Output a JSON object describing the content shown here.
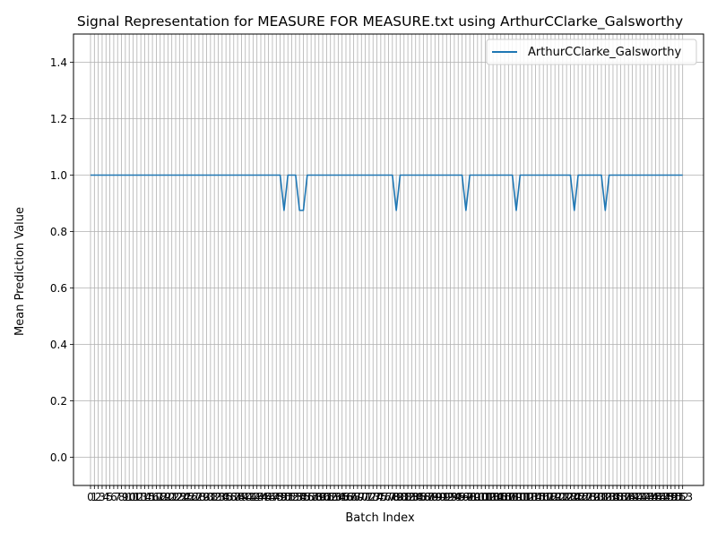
{
  "chart_data": {
    "type": "line",
    "title": "Signal Representation for MEASURE FOR MEASURE.txt using ArthurCClarke_Galsworthy",
    "xlabel": "Batch Index",
    "ylabel": "Mean Prediction Value",
    "xlim": [
      -4.4,
      158.4
    ],
    "ylim": [
      -0.1,
      1.5
    ],
    "x_ticks": [
      0,
      1,
      2,
      3,
      4,
      5,
      6,
      7,
      8,
      9,
      10,
      11,
      12,
      13,
      14,
      15,
      16,
      17,
      18,
      19,
      20,
      21,
      22,
      23,
      24,
      25,
      26,
      27,
      28,
      29,
      30,
      31,
      32,
      33,
      34,
      35,
      36,
      37,
      38,
      39,
      40,
      41,
      42,
      43,
      44,
      45,
      46,
      47,
      48,
      49,
      50,
      51,
      52,
      53,
      54,
      55,
      56,
      57,
      58,
      59,
      60,
      61,
      62,
      63,
      64,
      65,
      66,
      67,
      68,
      69,
      70,
      71,
      72,
      73,
      74,
      75,
      76,
      77,
      78,
      79,
      80,
      81,
      82,
      83,
      84,
      85,
      86,
      87,
      88,
      89,
      90,
      91,
      92,
      93,
      94,
      95,
      96,
      97,
      98,
      99,
      100,
      101,
      102,
      103,
      104,
      105,
      106,
      107,
      108,
      109,
      110,
      111,
      112,
      113,
      114,
      115,
      116,
      117,
      118,
      119,
      120,
      121,
      122,
      123,
      124,
      125,
      126,
      127,
      128,
      129,
      130,
      131,
      132,
      133,
      134,
      135,
      136,
      137,
      138,
      139,
      140,
      141,
      142,
      143,
      144,
      145,
      146,
      147,
      148,
      149,
      150,
      151,
      152,
      153
    ],
    "y_ticks": [
      "0.0",
      "0.2",
      "0.4",
      "0.6",
      "0.8",
      "1.0",
      "1.2",
      "1.4"
    ],
    "grid": true,
    "legend_position": "upper right",
    "series": [
      {
        "name": "ArthurCClarke_Galsworthy",
        "color": "#1f77b4",
        "x_start": 0,
        "values": [
          1,
          1,
          1,
          1,
          1,
          1,
          1,
          1,
          1,
          1,
          1,
          1,
          1,
          1,
          1,
          1,
          1,
          1,
          1,
          1,
          1,
          1,
          1,
          1,
          1,
          1,
          1,
          1,
          1,
          1,
          1,
          1,
          1,
          1,
          1,
          1,
          1,
          1,
          1,
          1,
          1,
          1,
          1,
          1,
          1,
          1,
          1,
          1,
          1,
          1,
          0.875,
          1,
          1,
          1,
          0.875,
          0.875,
          1,
          1,
          1,
          1,
          1,
          1,
          1,
          1,
          1,
          1,
          1,
          1,
          1,
          1,
          1,
          1,
          1,
          1,
          1,
          1,
          1,
          1,
          1,
          0.875,
          1,
          1,
          1,
          1,
          1,
          1,
          1,
          1,
          1,
          1,
          1,
          1,
          1,
          1,
          1,
          1,
          1,
          0.875,
          1,
          1,
          1,
          1,
          1,
          1,
          1,
          1,
          1,
          1,
          1,
          1,
          0.875,
          1,
          1,
          1,
          1,
          1,
          1,
          1,
          1,
          1,
          1,
          1,
          1,
          1,
          1,
          0.875,
          1,
          1,
          1,
          1,
          1,
          1,
          1,
          0.875,
          1,
          1,
          1,
          1,
          1,
          1,
          1,
          1,
          1,
          1,
          1,
          1,
          1,
          1,
          1,
          1,
          1,
          1,
          1,
          1
        ]
      }
    ]
  }
}
